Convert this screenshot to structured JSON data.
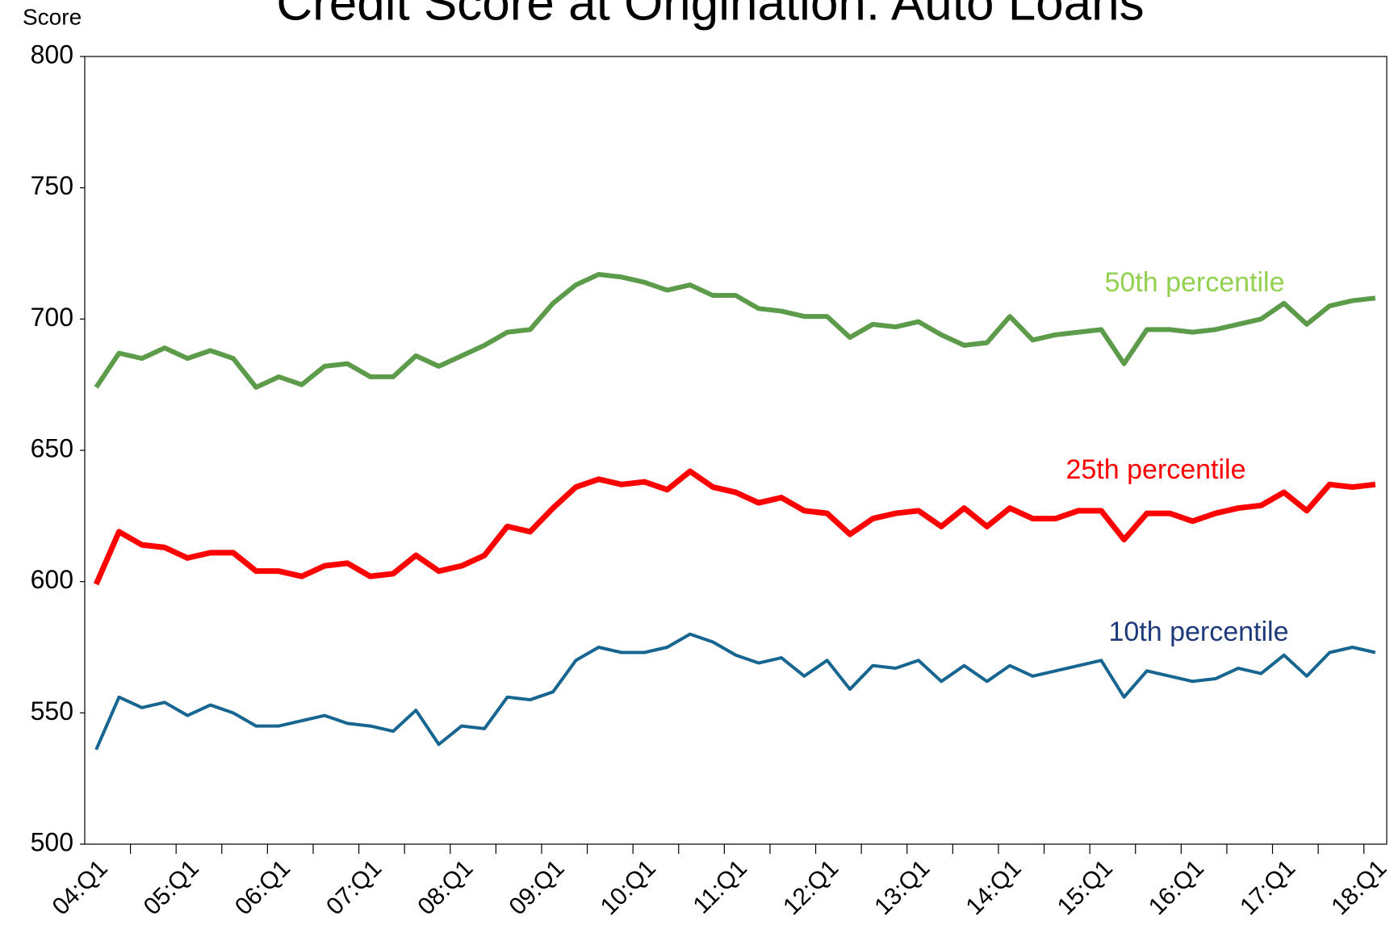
{
  "chart_data": {
    "type": "line",
    "title": "Credit Score at Origination: Auto Loans",
    "y_label": "Score",
    "categories": [
      "04:Q1",
      null,
      null,
      null,
      "05:Q1",
      null,
      null,
      null,
      "06:Q1",
      null,
      null,
      null,
      "07:Q1",
      null,
      null,
      null,
      "08:Q1",
      null,
      null,
      null,
      "09:Q1",
      null,
      null,
      null,
      "10:Q1",
      null,
      null,
      null,
      "11:Q1",
      null,
      null,
      null,
      "12:Q1",
      null,
      null,
      null,
      "13:Q1",
      null,
      null,
      null,
      "14:Q1",
      null,
      null,
      null,
      "15:Q1",
      null,
      null,
      null,
      "16:Q1",
      null,
      null,
      null,
      "17:Q1",
      null,
      null,
      null,
      "18:Q1"
    ],
    "series": [
      {
        "name": "50th percentile",
        "color": "#5b9b49",
        "label_color": "#92d050",
        "values": [
          674,
          687,
          685,
          689,
          685,
          688,
          685,
          674,
          678,
          675,
          682,
          683,
          678,
          678,
          686,
          682,
          686,
          690,
          695,
          696,
          706,
          713,
          717,
          716,
          714,
          711,
          713,
          709,
          709,
          704,
          703,
          701,
          701,
          693,
          698,
          697,
          699,
          694,
          690,
          691,
          701,
          692,
          694,
          695,
          696,
          683,
          696,
          696,
          695,
          696,
          698,
          700,
          706,
          698,
          705,
          707,
          708
        ]
      },
      {
        "name": "25th percentile",
        "color": "#ff0000",
        "label_color": "#ff0000",
        "values": [
          599,
          619,
          614,
          613,
          609,
          611,
          611,
          604,
          604,
          602,
          606,
          607,
          602,
          603,
          610,
          604,
          606,
          610,
          621,
          619,
          628,
          636,
          639,
          637,
          638,
          635,
          642,
          636,
          634,
          630,
          632,
          627,
          626,
          618,
          624,
          626,
          627,
          621,
          628,
          621,
          628,
          624,
          624,
          627,
          627,
          616,
          626,
          626,
          623,
          626,
          628,
          629,
          634,
          627,
          637,
          636,
          637
        ]
      },
      {
        "name": "10th percentile",
        "color": "#176591",
        "label_color": "#1f3a7a",
        "values": [
          536,
          556,
          552,
          554,
          549,
          553,
          550,
          545,
          545,
          547,
          549,
          546,
          545,
          543,
          551,
          538,
          545,
          544,
          556,
          555,
          558,
          570,
          575,
          573,
          573,
          575,
          580,
          577,
          572,
          569,
          571,
          564,
          570,
          559,
          568,
          567,
          570,
          562,
          568,
          562,
          568,
          564,
          566,
          568,
          570,
          556,
          566,
          564,
          562,
          563,
          567,
          565,
          572,
          564,
          573,
          575,
          573
        ]
      }
    ],
    "ylim": [
      500,
      800
    ],
    "yticks": [
      500,
      550,
      600,
      650,
      700,
      750,
      800
    ],
    "grid": false
  }
}
